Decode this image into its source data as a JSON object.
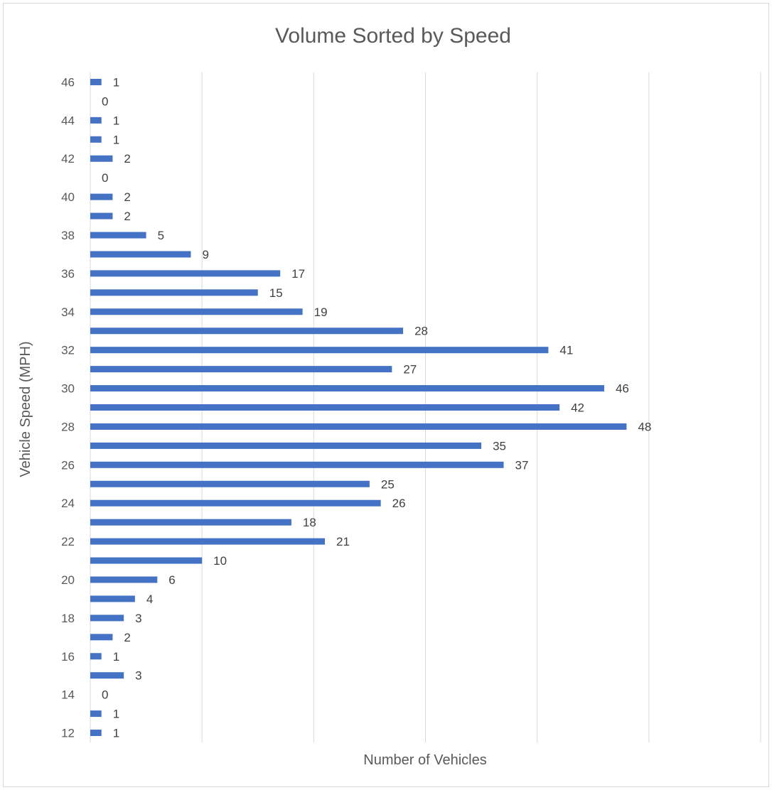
{
  "chart_data": {
    "type": "bar",
    "orientation": "horizontal",
    "title": "Volume Sorted by Speed",
    "xlabel": "Number of Vehicles",
    "ylabel": "Vehicle Speed (MPH)",
    "categories": [
      12,
      13,
      14,
      15,
      16,
      17,
      18,
      19,
      20,
      21,
      22,
      23,
      24,
      25,
      26,
      27,
      28,
      29,
      30,
      31,
      32,
      33,
      34,
      35,
      36,
      37,
      38,
      39,
      40,
      41,
      42,
      43,
      44,
      45,
      46
    ],
    "tick_labels": [
      "12",
      "",
      "14",
      "",
      "16",
      "",
      "18",
      "",
      "20",
      "",
      "22",
      "",
      "24",
      "",
      "26",
      "",
      "28",
      "",
      "30",
      "",
      "32",
      "",
      "34",
      "",
      "36",
      "",
      "38",
      "",
      "40",
      "",
      "42",
      "",
      "44",
      "",
      "46"
    ],
    "values": [
      1,
      1,
      0,
      3,
      1,
      2,
      3,
      4,
      6,
      10,
      21,
      18,
      26,
      25,
      37,
      35,
      48,
      42,
      46,
      27,
      41,
      28,
      19,
      15,
      17,
      9,
      5,
      2,
      2,
      0,
      2,
      1,
      1,
      0,
      1
    ],
    "xlim": [
      0,
      60
    ],
    "gridlines_x": [
      0,
      10,
      20,
      30,
      40,
      50,
      60
    ],
    "grid": true,
    "data_labels": true,
    "legend": "none",
    "colors": {
      "bar": "#4472c4",
      "grid": "#d9d9d9",
      "text": "#595959"
    }
  }
}
